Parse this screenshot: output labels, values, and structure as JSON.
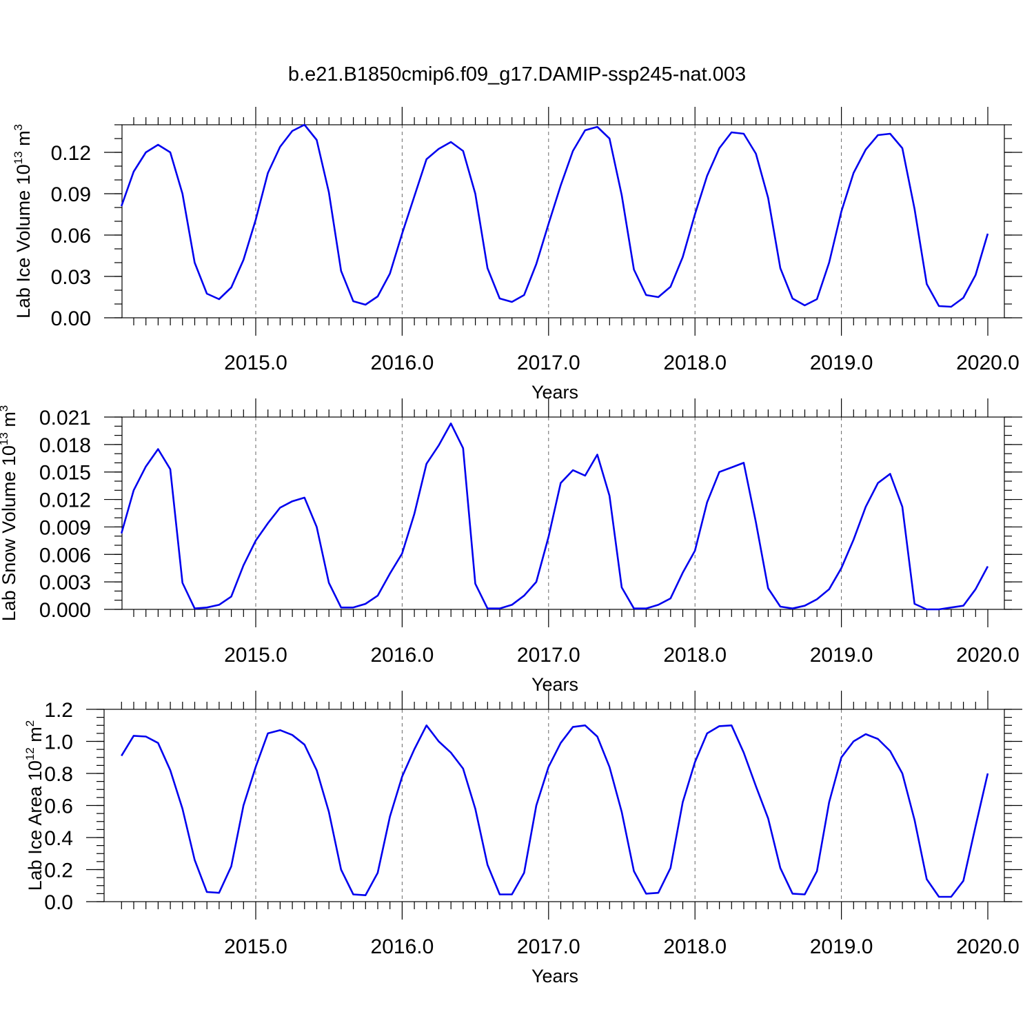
{
  "title": "b.e21.B1850cmip6.f09_g17.DAMIP-ssp245-nat.003",
  "colors": {
    "series": "#0000ee",
    "axes": "#000000",
    "grid": "#666666"
  },
  "chart_data": [
    {
      "type": "line",
      "ylabel": "Lab Ice Volume 10",
      "ylabel_exp": "13",
      "ylabel_unit": "m",
      "ylabel_unit_exp": "3",
      "xlabel": "Years",
      "xlim": [
        2014.083,
        2020.0
      ],
      "ylim": [
        0.0,
        0.14
      ],
      "yticks": [
        "0.00",
        "0.03",
        "0.06",
        "0.09",
        "0.12"
      ],
      "ytick_values": [
        0.0,
        0.03,
        0.06,
        0.09,
        0.12
      ],
      "yminor_step": 0.01,
      "xticks": [
        "2015.0",
        "2016.0",
        "2017.0",
        "2018.0",
        "2019.0",
        "2020.0"
      ],
      "xtick_values": [
        2015,
        2016,
        2017,
        2018,
        2019,
        2020
      ],
      "grid": "vertical dashed at major x ticks",
      "x_start": 2014.083,
      "x_step": 0.08333,
      "values": [
        0.081,
        0.106,
        0.12,
        0.1255,
        0.12,
        0.09,
        0.04,
        0.0175,
        0.0135,
        0.022,
        0.042,
        0.071,
        0.105,
        0.124,
        0.1355,
        0.14,
        0.129,
        0.091,
        0.034,
        0.012,
        0.0095,
        0.0155,
        0.032,
        0.061,
        0.088,
        0.115,
        0.1225,
        0.1275,
        0.121,
        0.09,
        0.036,
        0.014,
        0.0115,
        0.0165,
        0.039,
        0.068,
        0.096,
        0.121,
        0.136,
        0.1385,
        0.13,
        0.089,
        0.035,
        0.0165,
        0.015,
        0.0225,
        0.044,
        0.075,
        0.103,
        0.123,
        0.1345,
        0.1335,
        0.119,
        0.087,
        0.036,
        0.014,
        0.009,
        0.0135,
        0.04,
        0.077,
        0.105,
        0.122,
        0.1325,
        0.1335,
        0.123,
        0.079,
        0.0245,
        0.0085,
        0.008,
        0.0145,
        0.031,
        0.061
      ]
    },
    {
      "type": "line",
      "ylabel": "Lab Snow Volume 10",
      "ylabel_exp": "13",
      "ylabel_unit": "m",
      "ylabel_unit_exp": "3",
      "xlabel": "Years",
      "xlim": [
        2014.083,
        2020.0
      ],
      "ylim": [
        0.0,
        0.021
      ],
      "yticks": [
        "0.000",
        "0.003",
        "0.006",
        "0.009",
        "0.012",
        "0.015",
        "0.018",
        "0.021"
      ],
      "ytick_values": [
        0.0,
        0.003,
        0.006,
        0.009,
        0.012,
        0.015,
        0.018,
        0.021
      ],
      "yminor_step": 0.001,
      "xticks": [
        "2015.0",
        "2016.0",
        "2017.0",
        "2018.0",
        "2019.0",
        "2020.0"
      ],
      "xtick_values": [
        2015,
        2016,
        2017,
        2018,
        2019,
        2020
      ],
      "grid": "vertical dashed at major x ticks",
      "x_start": 2014.083,
      "x_step": 0.08333,
      "values": [
        0.0083,
        0.013,
        0.0156,
        0.0175,
        0.0153,
        0.0029,
        0.0001,
        0.0002,
        0.0005,
        0.0014,
        0.0048,
        0.0075,
        0.0094,
        0.0111,
        0.0118,
        0.0122,
        0.009,
        0.0029,
        0.0002,
        0.0002,
        0.0006,
        0.0015,
        0.0039,
        0.0061,
        0.0104,
        0.0159,
        0.0179,
        0.0203,
        0.0176,
        0.0028,
        0.0001,
        0.0001,
        0.0005,
        0.0015,
        0.003,
        0.0079,
        0.0138,
        0.0152,
        0.0146,
        0.0169,
        0.0124,
        0.0024,
        0.0001,
        0.0001,
        0.0005,
        0.0012,
        0.004,
        0.0064,
        0.0117,
        0.015,
        0.0155,
        0.016,
        0.0095,
        0.0023,
        0.0003,
        0.0001,
        0.0004,
        0.0011,
        0.0022,
        0.0045,
        0.0076,
        0.0112,
        0.0138,
        0.0148,
        0.0112,
        0.0006,
        0.0,
        0.0,
        0.0002,
        0.0004,
        0.0022,
        0.0047
      ]
    },
    {
      "type": "line",
      "ylabel": "Lab Ice Area 10",
      "ylabel_exp": "12",
      "ylabel_unit": "m",
      "ylabel_unit_exp": "2",
      "xlabel": "Years",
      "xlim": [
        2014.083,
        2020.0
      ],
      "ylim": [
        0.0,
        1.2
      ],
      "yticks": [
        "0.0",
        "0.2",
        "0.4",
        "0.6",
        "0.8",
        "1.0",
        "1.2"
      ],
      "ytick_values": [
        0.0,
        0.2,
        0.4,
        0.6,
        0.8,
        1.0,
        1.2
      ],
      "yminor_step": 0.05,
      "xticks": [
        "2015.0",
        "2016.0",
        "2017.0",
        "2018.0",
        "2019.0",
        "2020.0"
      ],
      "xtick_values": [
        2015,
        2016,
        2017,
        2018,
        2019,
        2020
      ],
      "grid": "vertical dashed at major x ticks",
      "x_start": 2014.083,
      "x_step": 0.08333,
      "values": [
        0.91,
        1.035,
        1.03,
        0.99,
        0.82,
        0.58,
        0.26,
        0.06,
        0.055,
        0.22,
        0.6,
        0.84,
        1.05,
        1.07,
        1.04,
        0.98,
        0.82,
        0.56,
        0.2,
        0.045,
        0.04,
        0.18,
        0.53,
        0.78,
        0.95,
        1.1,
        1.0,
        0.93,
        0.83,
        0.58,
        0.23,
        0.045,
        0.045,
        0.18,
        0.6,
        0.84,
        0.99,
        1.09,
        1.1,
        1.03,
        0.84,
        0.56,
        0.19,
        0.05,
        0.055,
        0.21,
        0.62,
        0.87,
        1.05,
        1.095,
        1.1,
        0.93,
        0.72,
        0.52,
        0.21,
        0.05,
        0.045,
        0.19,
        0.62,
        0.9,
        1.0,
        1.045,
        1.015,
        0.94,
        0.8,
        0.51,
        0.14,
        0.03,
        0.03,
        0.13,
        0.47,
        0.8
      ]
    }
  ]
}
